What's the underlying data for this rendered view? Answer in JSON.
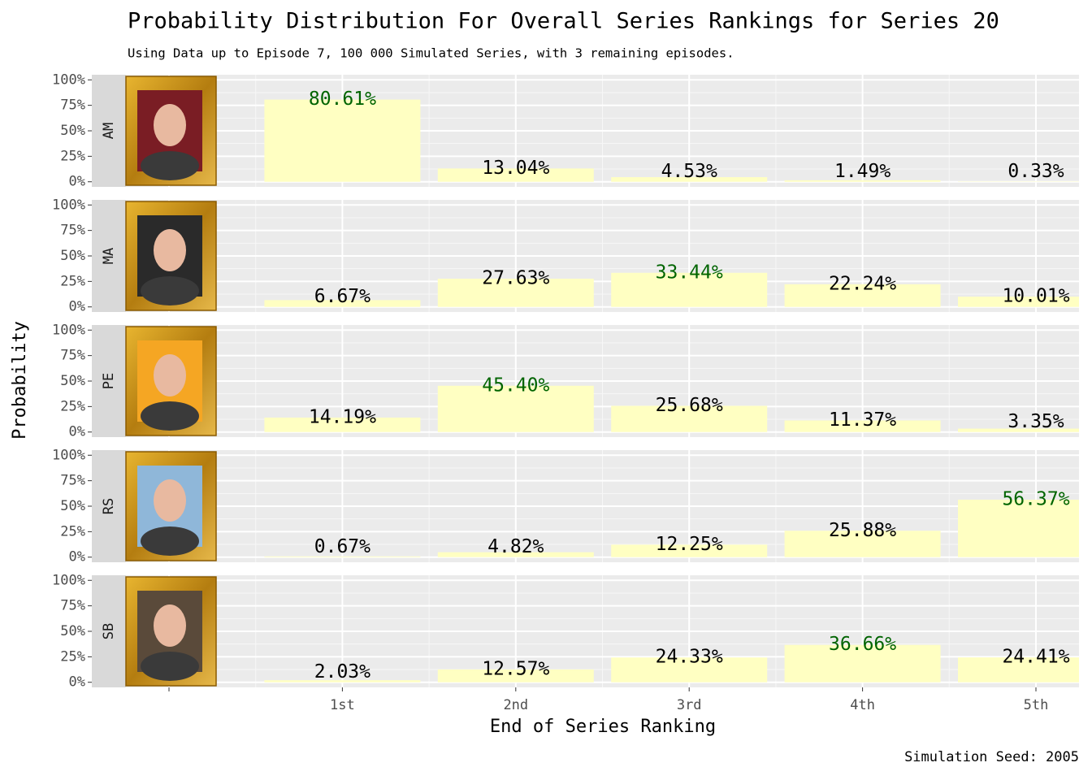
{
  "chart_data": {
    "type": "bar",
    "title": "Probability Distribution For Overall Series Rankings for Series 20",
    "subtitle": "Using Data up to Episode 7, 100 000 Simulated Series, with 3 remaining episodes.",
    "xlabel": "End of Series Ranking",
    "ylabel": "Probability",
    "caption": "Simulation Seed: 2005",
    "categories": [
      null,
      "1st",
      "2nd",
      "3rd",
      "4th",
      "5th"
    ],
    "color": "#ffffc2",
    "highlight_color": "#006400",
    "label_color": "#000000",
    "grid": true,
    "ylim": [
      -5,
      105
    ],
    "yticks": [
      {
        "value": 0,
        "label": "0%"
      },
      {
        "value": 25,
        "label": "25%"
      },
      {
        "value": 50,
        "label": "50%"
      },
      {
        "value": 75,
        "label": "75%"
      },
      {
        "value": 100,
        "label": "100%"
      }
    ],
    "facets": [
      {
        "label": "AM",
        "values": [
          null,
          80.61,
          13.04,
          4.53,
          1.49,
          0.33
        ],
        "value_labels": [
          null,
          "80.61%",
          "13.04%",
          "4.53%",
          "1.49%",
          "0.33%"
        ]
      },
      {
        "label": "MA",
        "values": [
          null,
          6.67,
          27.63,
          33.44,
          22.24,
          10.01
        ],
        "value_labels": [
          null,
          "6.67%",
          "27.63%",
          "33.44%",
          "22.24%",
          "10.01%"
        ]
      },
      {
        "label": "PE",
        "values": [
          null,
          14.19,
          45.4,
          25.68,
          11.37,
          3.35
        ],
        "value_labels": [
          null,
          "14.19%",
          "45.40%",
          "25.68%",
          "11.37%",
          "3.35%"
        ]
      },
      {
        "label": "RS",
        "values": [
          null,
          0.67,
          4.82,
          12.25,
          25.88,
          56.37
        ],
        "value_labels": [
          null,
          "0.67%",
          "4.82%",
          "12.25%",
          "25.88%",
          "56.37%"
        ]
      },
      {
        "label": "SB",
        "values": [
          null,
          2.03,
          12.57,
          24.33,
          36.66,
          24.41
        ],
        "value_labels": [
          null,
          "2.03%",
          "12.57%",
          "24.33%",
          "36.66%",
          "24.41%"
        ]
      }
    ]
  }
}
